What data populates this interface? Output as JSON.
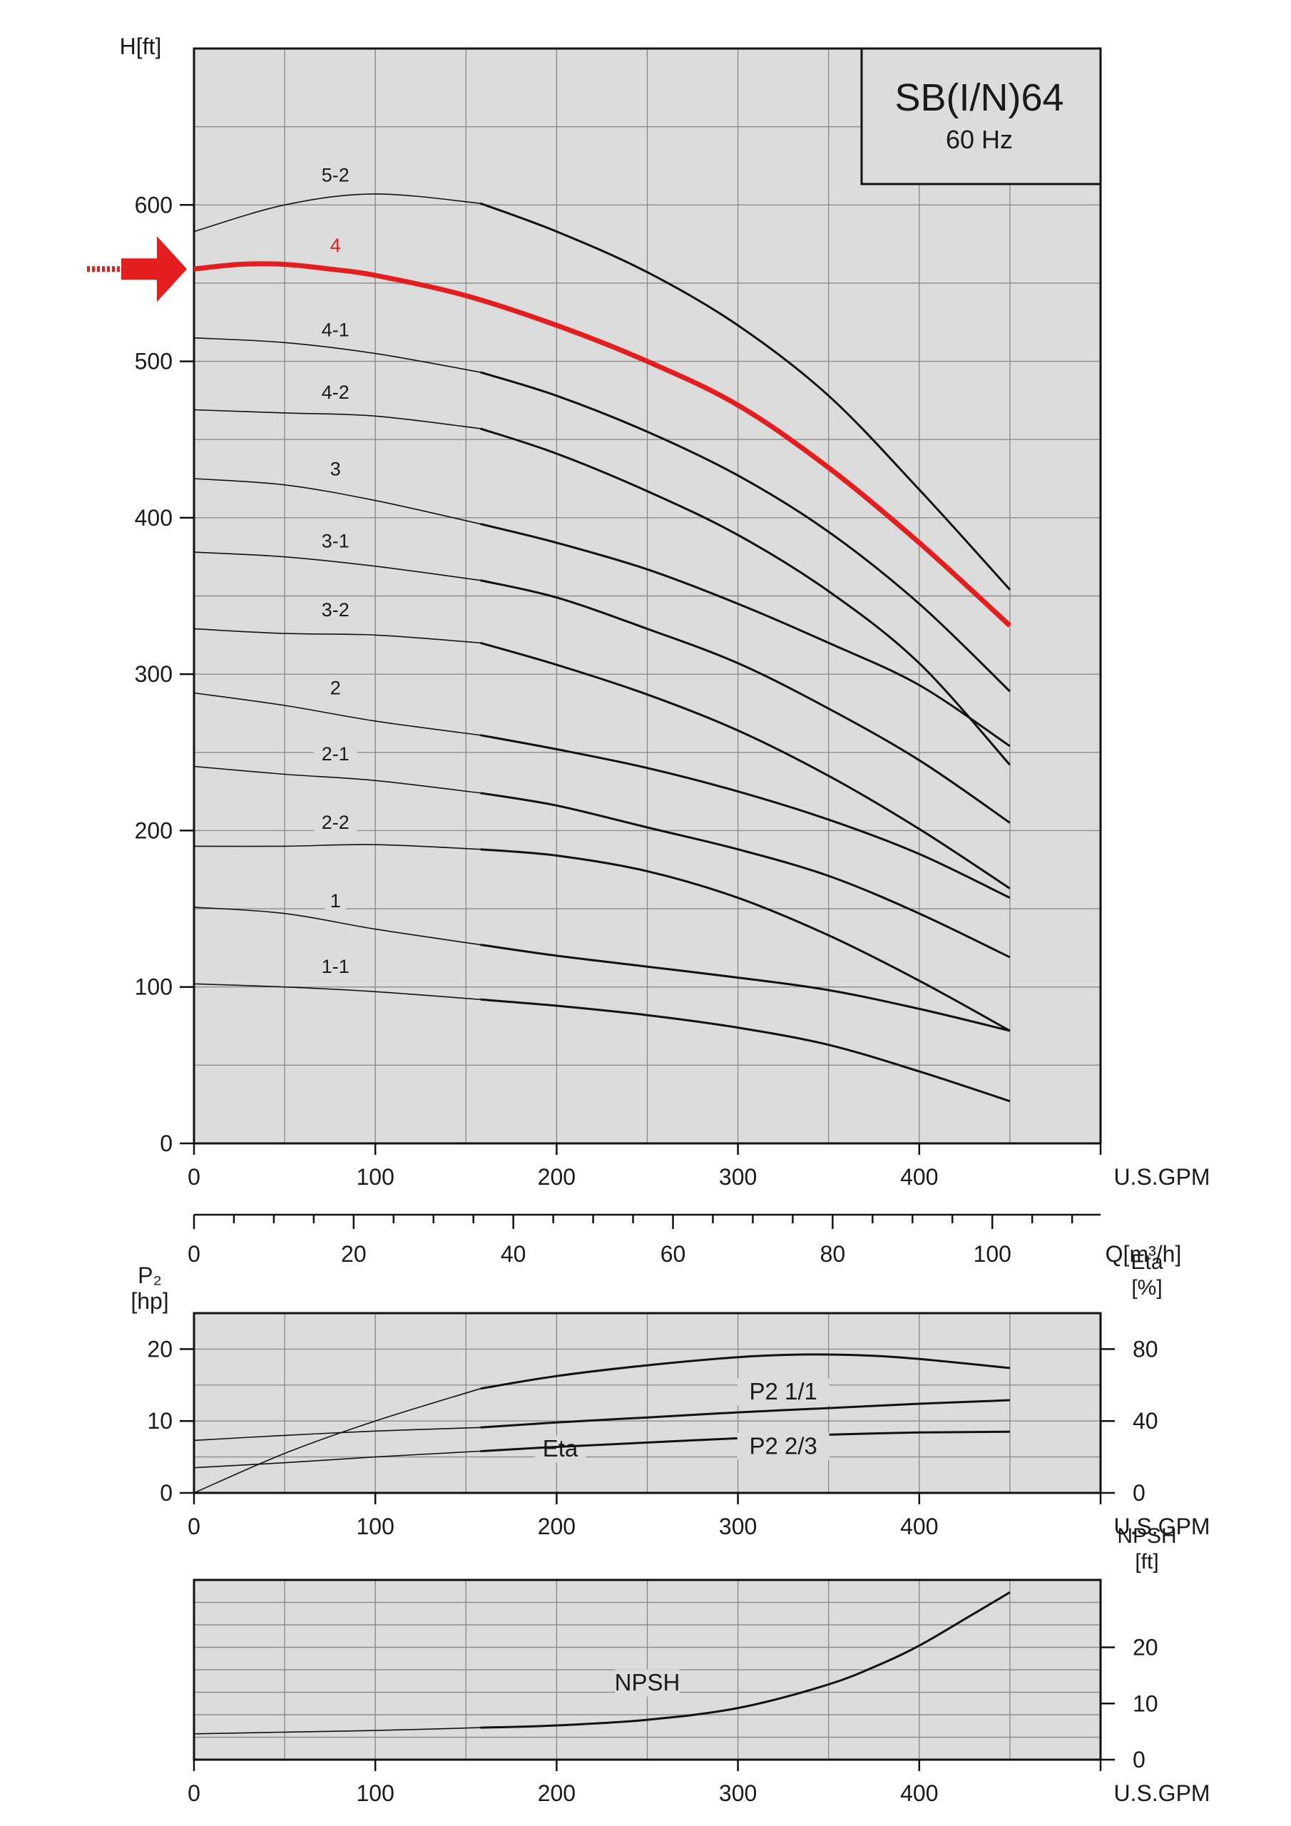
{
  "colors": {
    "plot_background": "#dcdcdc",
    "curve": "#111111",
    "highlight": "#e41e1e",
    "grid": "#8c8c8c"
  },
  "title_box": {
    "title": "SB(I/N)64",
    "subtitle": "60 Hz"
  },
  "chart_data": [
    {
      "type": "line",
      "panel": "head",
      "xlabel": "U.S.GPM",
      "ylabel": "H[ft]",
      "xlim": [
        0,
        500
      ],
      "ylim": [
        0,
        700
      ],
      "xticks": [
        0,
        100,
        200,
        300,
        400
      ],
      "yticks": [
        0,
        100,
        200,
        300,
        400,
        500,
        600
      ],
      "secondary_xaxis": {
        "label": "Q[m³/h]",
        "ticks": [
          0,
          20,
          40,
          60,
          80,
          100
        ],
        "gpm_per_unit": 4.4029
      },
      "grid": true,
      "highlight": {
        "curve": "4",
        "arrow_direction": "right",
        "color": "#e41e1e"
      },
      "series": [
        {
          "name": "5-2",
          "label_at": [
            78,
            615
          ],
          "x": [
            0,
            50,
            100,
            158,
            200,
            250,
            300,
            350,
            400,
            450
          ],
          "y": [
            583,
            600,
            607,
            601,
            583,
            557,
            523,
            478,
            418,
            354
          ]
        },
        {
          "name": "4",
          "label_at": [
            78,
            570
          ],
          "x": [
            0,
            25,
            50,
            75,
            100,
            150,
            200,
            250,
            300,
            350,
            400,
            450
          ],
          "y": [
            559,
            562,
            562,
            559,
            555,
            542,
            523,
            500,
            472,
            432,
            384,
            331
          ]
        },
        {
          "name": "4-1",
          "label_at": [
            78,
            516
          ],
          "x": [
            0,
            50,
            100,
            158,
            200,
            250,
            300,
            350,
            400,
            450
          ],
          "y": [
            515,
            512,
            505,
            493,
            478,
            455,
            427,
            391,
            345,
            289
          ]
        },
        {
          "name": "4-2",
          "label_at": [
            78,
            476
          ],
          "x": [
            0,
            50,
            100,
            158,
            200,
            250,
            300,
            350,
            400,
            450
          ],
          "y": [
            469,
            467,
            465,
            457,
            441,
            417,
            389,
            353,
            307,
            242
          ]
        },
        {
          "name": "3",
          "label_at": [
            78,
            427
          ],
          "x": [
            0,
            50,
            100,
            158,
            200,
            250,
            300,
            350,
            400,
            450
          ],
          "y": [
            425,
            421,
            411,
            396,
            384,
            367,
            345,
            320,
            293,
            254
          ]
        },
        {
          "name": "3-1",
          "label_at": [
            78,
            381
          ],
          "x": [
            0,
            50,
            100,
            158,
            200,
            250,
            300,
            350,
            400,
            450
          ],
          "y": [
            378,
            375,
            369,
            360,
            349,
            329,
            307,
            278,
            245,
            205
          ]
        },
        {
          "name": "3-2",
          "label_at": [
            78,
            337
          ],
          "x": [
            0,
            50,
            100,
            158,
            200,
            250,
            300,
            350,
            400,
            450
          ],
          "y": [
            329,
            326,
            325,
            320,
            306,
            287,
            264,
            235,
            201,
            163
          ]
        },
        {
          "name": "2",
          "label_at": [
            78,
            287
          ],
          "x": [
            0,
            50,
            100,
            158,
            200,
            250,
            300,
            350,
            400,
            450
          ],
          "y": [
            288,
            280,
            270,
            261,
            252,
            240,
            225,
            207,
            185,
            157
          ]
        },
        {
          "name": "2-1",
          "label_at": [
            78,
            245
          ],
          "x": [
            0,
            50,
            100,
            158,
            200,
            250,
            300,
            350,
            400,
            450
          ],
          "y": [
            241,
            236,
            232,
            224,
            216,
            202,
            188,
            171,
            147,
            119
          ]
        },
        {
          "name": "2-2",
          "label_at": [
            78,
            201
          ],
          "x": [
            0,
            50,
            100,
            158,
            200,
            250,
            300,
            350,
            400,
            450
          ],
          "y": [
            190,
            190,
            191,
            188,
            184,
            174,
            157,
            133,
            104,
            72
          ]
        },
        {
          "name": "1",
          "label_at": [
            78,
            151
          ],
          "x": [
            0,
            50,
            100,
            158,
            200,
            250,
            300,
            350,
            400,
            450
          ],
          "y": [
            151,
            147,
            137,
            127,
            120,
            113,
            106,
            98,
            86,
            72
          ]
        },
        {
          "name": "1-1",
          "label_at": [
            78,
            109
          ],
          "x": [
            0,
            50,
            100,
            158,
            200,
            250,
            300,
            350,
            400,
            450
          ],
          "y": [
            102,
            100,
            97,
            92,
            88,
            82,
            74,
            63,
            46,
            27
          ]
        }
      ]
    },
    {
      "type": "line",
      "panel": "power_efficiency",
      "xlabel": "U.S.GPM",
      "ylabel": "P₂\n[hp]",
      "y2label": "Eta\n[%]",
      "xlim": [
        0,
        500
      ],
      "ylim": [
        0,
        25
      ],
      "y2lim": [
        0,
        100
      ],
      "xticks": [
        0,
        100,
        200,
        300,
        400
      ],
      "yticks": [
        0,
        10,
        20
      ],
      "y2ticks": [
        0,
        40,
        80
      ],
      "grid": true,
      "series": [
        {
          "name": "Eta",
          "axis": "y2",
          "label_at": [
            202,
            20.2
          ],
          "x": [
            0,
            50,
            100,
            158,
            200,
            250,
            300,
            335,
            370,
            400,
            450
          ],
          "y": [
            0,
            22,
            40,
            58,
            65,
            71,
            75.5,
            77,
            76.5,
            74.5,
            69.5
          ]
        },
        {
          "name": "P2 1/1",
          "axis": "y",
          "label_at": [
            325,
            13
          ],
          "x": [
            0,
            50,
            100,
            158,
            200,
            250,
            300,
            350,
            400,
            450
          ],
          "y": [
            7.3,
            8.0,
            8.6,
            9.1,
            9.8,
            10.5,
            11.2,
            11.8,
            12.4,
            12.9
          ]
        },
        {
          "name": "P2 2/3",
          "axis": "y",
          "label_at": [
            325,
            5.4
          ],
          "x": [
            0,
            50,
            100,
            158,
            200,
            250,
            300,
            350,
            400,
            450
          ],
          "y": [
            3.5,
            4.2,
            5.0,
            5.8,
            6.4,
            7.0,
            7.6,
            8.1,
            8.4,
            8.5
          ]
        }
      ]
    },
    {
      "type": "line",
      "panel": "npsh",
      "xlabel": "U.S.GPM",
      "y2label": "NPSH\n[ft]",
      "xlim": [
        0,
        500
      ],
      "y2lim": [
        0,
        32
      ],
      "xticks": [
        0,
        100,
        200,
        300,
        400
      ],
      "y2ticks": [
        0,
        10,
        20
      ],
      "grid": true,
      "series": [
        {
          "name": "NPSH",
          "axis": "y2",
          "label_at": [
            250,
            12.3
          ],
          "x": [
            0,
            50,
            100,
            158,
            200,
            250,
            300,
            350,
            380,
            400,
            425,
            450
          ],
          "y": [
            4.6,
            4.9,
            5.2,
            5.7,
            6.1,
            7.1,
            9.2,
            13.4,
            17.2,
            20.3,
            25.0,
            29.8
          ]
        }
      ]
    }
  ]
}
